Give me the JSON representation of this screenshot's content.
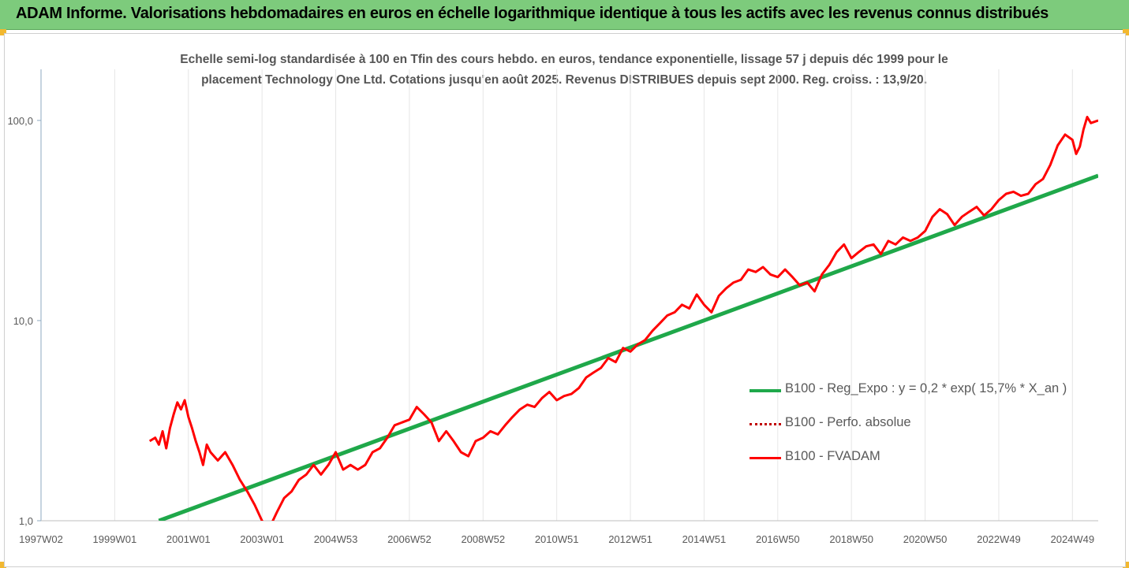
{
  "banner": {
    "title": "ADAM Informe. Valorisations hebdomadaires en euros en échelle logarithmique identique à tous les actifs avec les revenus connus distribués"
  },
  "colors": {
    "banner_bg": "#7dcb7c",
    "trend": "#1fa84a",
    "fvadam": "#ff0000",
    "perf": "#c00000",
    "grid": "#e6e6e6"
  },
  "chart_data": {
    "type": "line",
    "title_line1": "Echelle semi-log standardisée à 100 en Tfin des cours hebdo. en euros, tendance exponentielle, lissage 57 j depuis déc 1999 pour le",
    "title_line2": "placement Technology One Ltd. Cotations jusqu'en août 2025. Revenus DISTRIBUES depuis sept 2000.  Reg. croiss. : 13,9/20.",
    "y_scale": "log",
    "ylim": [
      1,
      180
    ],
    "y_ticks": [
      {
        "value": 1,
        "label": "1,0"
      },
      {
        "value": 10,
        "label": "10,0"
      },
      {
        "value": 100,
        "label": "100,0"
      }
    ],
    "xlim": [
      1997.0,
      2025.7
    ],
    "x_ticks": [
      {
        "value": 1997.0,
        "label": "1997W02"
      },
      {
        "value": 1999.0,
        "label": "1999W01"
      },
      {
        "value": 2001.0,
        "label": "2001W01"
      },
      {
        "value": 2003.0,
        "label": "2003W01"
      },
      {
        "value": 2005.0,
        "label": "2004W53"
      },
      {
        "value": 2007.0,
        "label": "2006W52"
      },
      {
        "value": 2009.0,
        "label": "2008W52"
      },
      {
        "value": 2011.0,
        "label": "2010W51"
      },
      {
        "value": 2013.0,
        "label": "2012W51"
      },
      {
        "value": 2015.0,
        "label": "2014W51"
      },
      {
        "value": 2017.0,
        "label": "2016W50"
      },
      {
        "value": 2019.0,
        "label": "2018W50"
      },
      {
        "value": 2021.0,
        "label": "2020W50"
      },
      {
        "value": 2023.0,
        "label": "2022W49"
      },
      {
        "value": 2025.0,
        "label": "2024W49"
      }
    ],
    "legend_placement": "right-middle",
    "grid": "vertical",
    "series": [
      {
        "name": "B100 - Reg_Expo : y = 0,2 * exp( 15,7% *  X_an )",
        "style": "solid-thick",
        "x": [
          2000.2,
          2025.7
        ],
        "y": [
          1.0,
          53.0
        ]
      },
      {
        "name": "B100 - Perfo. absolue",
        "style": "dotted",
        "x": [],
        "y": []
      },
      {
        "name": "B100 - FVADAM",
        "style": "solid",
        "x": [
          1999.95,
          2000.1,
          2000.2,
          2000.3,
          2000.4,
          2000.5,
          2000.6,
          2000.7,
          2000.8,
          2000.9,
          2001.0,
          2001.1,
          2001.2,
          2001.3,
          2001.4,
          2001.5,
          2001.6,
          2001.8,
          2002.0,
          2002.2,
          2002.4,
          2002.6,
          2002.8,
          2003.0,
          2003.1,
          2003.2,
          2003.4,
          2003.6,
          2003.8,
          2004.0,
          2004.2,
          2004.4,
          2004.6,
          2004.8,
          2005.0,
          2005.2,
          2005.4,
          2005.6,
          2005.8,
          2006.0,
          2006.2,
          2006.4,
          2006.6,
          2006.8,
          2007.0,
          2007.2,
          2007.4,
          2007.6,
          2007.8,
          2008.0,
          2008.2,
          2008.4,
          2008.6,
          2008.8,
          2009.0,
          2009.2,
          2009.4,
          2009.6,
          2009.8,
          2010.0,
          2010.2,
          2010.4,
          2010.6,
          2010.8,
          2011.0,
          2011.2,
          2011.4,
          2011.6,
          2011.8,
          2012.0,
          2012.2,
          2012.4,
          2012.6,
          2012.8,
          2013.0,
          2013.2,
          2013.4,
          2013.6,
          2013.8,
          2014.0,
          2014.2,
          2014.4,
          2014.6,
          2014.8,
          2015.0,
          2015.2,
          2015.4,
          2015.6,
          2015.8,
          2016.0,
          2016.2,
          2016.4,
          2016.6,
          2016.8,
          2017.0,
          2017.2,
          2017.4,
          2017.6,
          2017.8,
          2018.0,
          2018.2,
          2018.4,
          2018.6,
          2018.8,
          2019.0,
          2019.2,
          2019.4,
          2019.6,
          2019.8,
          2020.0,
          2020.2,
          2020.4,
          2020.6,
          2020.8,
          2021.0,
          2021.2,
          2021.4,
          2021.6,
          2021.8,
          2022.0,
          2022.2,
          2022.4,
          2022.6,
          2022.8,
          2023.0,
          2023.2,
          2023.4,
          2023.6,
          2023.8,
          2024.0,
          2024.2,
          2024.4,
          2024.6,
          2024.8,
          2025.0,
          2025.1,
          2025.2,
          2025.3,
          2025.4,
          2025.5,
          2025.7
        ],
        "y": [
          2.5,
          2.6,
          2.4,
          2.8,
          2.3,
          2.9,
          3.4,
          3.9,
          3.6,
          4.0,
          3.3,
          2.9,
          2.5,
          2.2,
          1.9,
          2.4,
          2.2,
          2.0,
          2.2,
          1.9,
          1.6,
          1.4,
          1.2,
          1.0,
          0.95,
          0.92,
          1.1,
          1.3,
          1.4,
          1.6,
          1.7,
          1.9,
          1.7,
          1.9,
          2.2,
          1.8,
          1.9,
          1.8,
          1.9,
          2.2,
          2.3,
          2.6,
          3.0,
          3.1,
          3.2,
          3.7,
          3.4,
          3.1,
          2.5,
          2.8,
          2.5,
          2.2,
          2.1,
          2.5,
          2.6,
          2.8,
          2.7,
          3.0,
          3.3,
          3.6,
          3.8,
          3.7,
          4.1,
          4.4,
          4.0,
          4.2,
          4.3,
          4.6,
          5.2,
          5.5,
          5.8,
          6.5,
          6.2,
          7.3,
          7.0,
          7.6,
          8.0,
          8.9,
          9.7,
          10.6,
          11.0,
          12.0,
          11.5,
          13.5,
          12.0,
          11.0,
          13.3,
          14.5,
          15.5,
          16.0,
          18.0,
          17.5,
          18.5,
          17.0,
          16.5,
          18.0,
          16.5,
          15.0,
          15.5,
          14.0,
          17.0,
          19.0,
          22.0,
          24.0,
          20.5,
          22.0,
          23.5,
          24.0,
          21.5,
          25.0,
          24.0,
          26.0,
          25.0,
          26.0,
          28.0,
          33.0,
          36.0,
          34.0,
          30.0,
          33.0,
          35.0,
          37.0,
          33.5,
          36.0,
          40.0,
          43.0,
          44.0,
          42.0,
          43.0,
          48.0,
          51.0,
          60.0,
          75.0,
          85.0,
          80.0,
          68.0,
          74.0,
          90.0,
          104.0,
          97.0,
          100.0
        ]
      }
    ]
  }
}
